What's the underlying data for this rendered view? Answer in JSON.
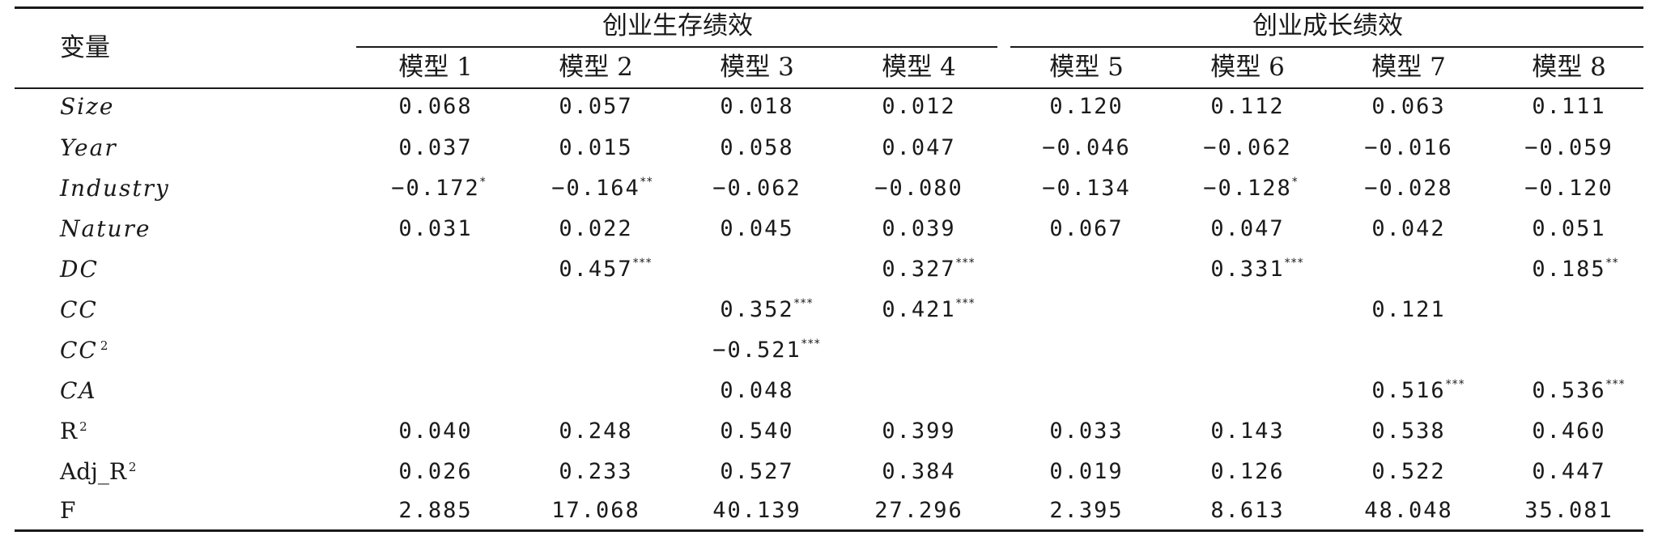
{
  "table": {
    "corner_label": "变量",
    "groups": [
      "创业生存绩效",
      "创业成长绩效"
    ],
    "models": [
      "模型 1",
      "模型 2",
      "模型 3",
      "模型 4",
      "模型 5",
      "模型 6",
      "模型 7",
      "模型 8"
    ],
    "rows": [
      {
        "label": "Size",
        "cells": [
          {
            "v": "0.068"
          },
          {
            "v": "0.057"
          },
          {
            "v": "0.018"
          },
          {
            "v": "0.012"
          },
          {
            "v": "0.120"
          },
          {
            "v": "0.112"
          },
          {
            "v": "0.063"
          },
          {
            "v": "0.111"
          }
        ]
      },
      {
        "label": "Year",
        "cells": [
          {
            "v": "0.037"
          },
          {
            "v": "0.015"
          },
          {
            "v": "0.058"
          },
          {
            "v": "0.047"
          },
          {
            "v": "−0.046"
          },
          {
            "v": "−0.062"
          },
          {
            "v": "−0.016"
          },
          {
            "v": "−0.059"
          }
        ]
      },
      {
        "label": "Industry",
        "cells": [
          {
            "v": "−0.172",
            "s": "*"
          },
          {
            "v": "−0.164",
            "s": "**"
          },
          {
            "v": "−0.062"
          },
          {
            "v": "−0.080"
          },
          {
            "v": "−0.134"
          },
          {
            "v": "−0.128",
            "s": "*"
          },
          {
            "v": "−0.028"
          },
          {
            "v": "−0.120"
          }
        ]
      },
      {
        "label": "Nature",
        "cells": [
          {
            "v": "0.031"
          },
          {
            "v": "0.022"
          },
          {
            "v": "0.045"
          },
          {
            "v": "0.039"
          },
          {
            "v": "0.067"
          },
          {
            "v": "0.047"
          },
          {
            "v": "0.042"
          },
          {
            "v": "0.051"
          }
        ]
      },
      {
        "label": "DC",
        "cells": [
          {
            "v": ""
          },
          {
            "v": "0.457",
            "s": "***"
          },
          {
            "v": ""
          },
          {
            "v": "0.327",
            "s": "***"
          },
          {
            "v": ""
          },
          {
            "v": "0.331",
            "s": "***"
          },
          {
            "v": ""
          },
          {
            "v": "0.185",
            "s": "**"
          }
        ]
      },
      {
        "label": "CC",
        "cells": [
          {
            "v": ""
          },
          {
            "v": ""
          },
          {
            "v": "0.352",
            "s": "***"
          },
          {
            "v": "0.421",
            "s": "***"
          },
          {
            "v": ""
          },
          {
            "v": ""
          },
          {
            "v": "0.121"
          },
          {
            "v": ""
          }
        ]
      },
      {
        "label": "CC",
        "label_sup": "2",
        "cells": [
          {
            "v": ""
          },
          {
            "v": ""
          },
          {
            "v": "−0.521",
            "s": "***"
          },
          {
            "v": ""
          },
          {
            "v": ""
          },
          {
            "v": ""
          },
          {
            "v": ""
          },
          {
            "v": ""
          }
        ]
      },
      {
        "label": "CA",
        "cells": [
          {
            "v": ""
          },
          {
            "v": ""
          },
          {
            "v": "0.048"
          },
          {
            "v": ""
          },
          {
            "v": ""
          },
          {
            "v": ""
          },
          {
            "v": "0.516",
            "s": "***"
          },
          {
            "v": "0.536",
            "s": "***"
          }
        ]
      },
      {
        "label": "R",
        "label_sup": "2",
        "cells": [
          {
            "v": "0.040"
          },
          {
            "v": "0.248"
          },
          {
            "v": "0.540"
          },
          {
            "v": "0.399"
          },
          {
            "v": "0.033"
          },
          {
            "v": "0.143"
          },
          {
            "v": "0.538"
          },
          {
            "v": "0.460"
          }
        ]
      },
      {
        "label": "Adj_R",
        "label_sup": "2",
        "cells": [
          {
            "v": "0.026"
          },
          {
            "v": "0.233"
          },
          {
            "v": "0.527"
          },
          {
            "v": "0.384"
          },
          {
            "v": "0.019"
          },
          {
            "v": "0.126"
          },
          {
            "v": "0.522"
          },
          {
            "v": "0.447"
          }
        ]
      },
      {
        "label": "F",
        "cells": [
          {
            "v": "2.885"
          },
          {
            "v": "17.068"
          },
          {
            "v": "40.139"
          },
          {
            "v": "27.296"
          },
          {
            "v": "2.395"
          },
          {
            "v": "8.613"
          },
          {
            "v": "48.048"
          },
          {
            "v": "35.081"
          }
        ]
      }
    ]
  }
}
